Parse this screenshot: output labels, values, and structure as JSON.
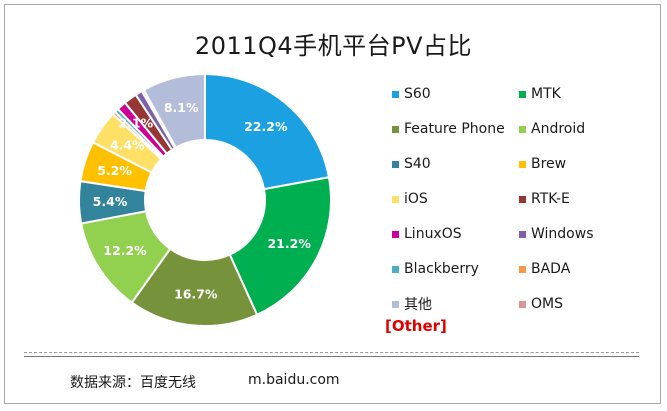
{
  "chart_data": {
    "type": "pie",
    "title": "2011Q4手机平台PV占比",
    "donut": true,
    "slices": [
      {
        "name": "S60",
        "value": 22.2,
        "label": "22.2%",
        "color": "#1ba1e2"
      },
      {
        "name": "MTK",
        "value": 21.2,
        "label": "21.2%",
        "color": "#00b050"
      },
      {
        "name": "Feature Phone",
        "value": 16.7,
        "label": "16.7%",
        "color": "#76933c"
      },
      {
        "name": "Android",
        "value": 12.2,
        "label": "12.2%",
        "color": "#92d050"
      },
      {
        "name": "S40",
        "value": 5.4,
        "label": "5.4%",
        "color": "#31849b"
      },
      {
        "name": "Brew",
        "value": 5.2,
        "label": "5.2%",
        "color": "#ffc000"
      },
      {
        "name": "iOS",
        "value": 4.4,
        "label": "4.4%",
        "color": "#ffe066"
      },
      {
        "name": "RTK-E",
        "value": 1.7,
        "label": "",
        "color": "#953735"
      },
      {
        "name": "LinuxOS",
        "value": 1.2,
        "label": "",
        "color": "#cc0099"
      },
      {
        "name": "Windows",
        "value": 0.9,
        "label": "",
        "color": "#7f5fa8"
      },
      {
        "name": "Blackberry",
        "value": 0.5,
        "label": "",
        "color": "#4bacc6"
      },
      {
        "name": "BADA",
        "value": 0.4,
        "label": "",
        "color": "#f79646"
      },
      {
        "name": "其他",
        "value": 8.1,
        "label": "8.1%",
        "color": "#b3bdd9"
      },
      {
        "name": "OMS",
        "value": 0.3,
        "label": "",
        "color": "#d99694"
      }
    ],
    "combined_label": "2.1%",
    "legend_placement": "right",
    "legend_columns": 2
  },
  "legend": {
    "other_note": "[Other]"
  },
  "footer": {
    "source": "数据来源：百度无线",
    "site": "m.baidu.com"
  }
}
